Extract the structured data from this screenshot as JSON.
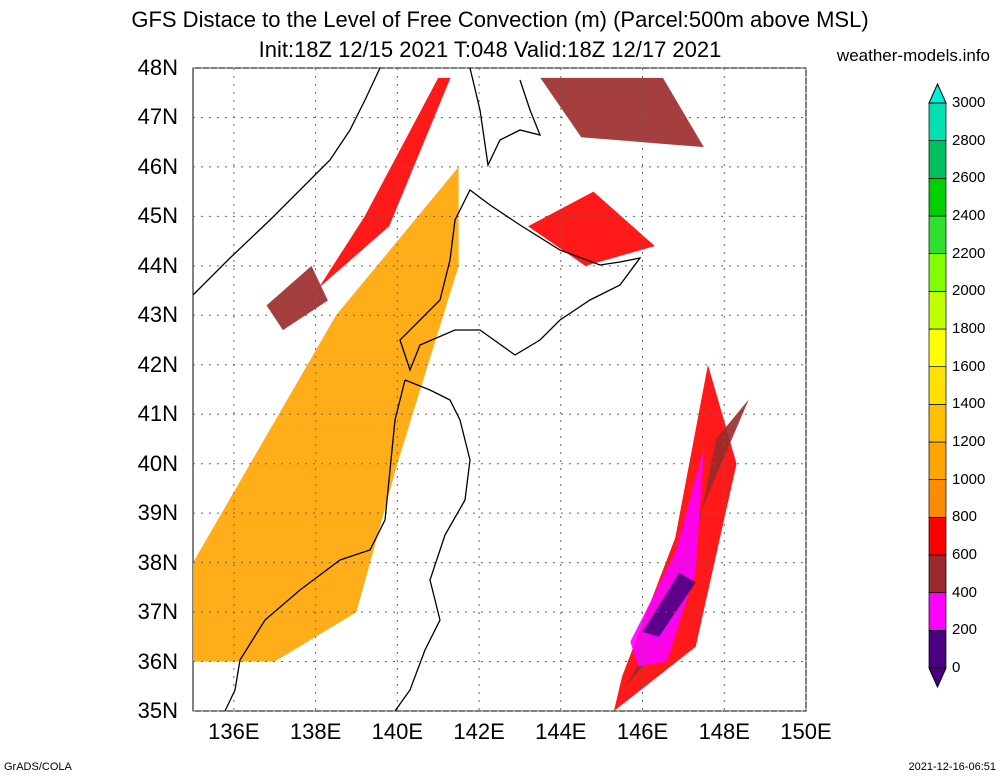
{
  "title_line1": "GFS Distace to the Level of Free Convection (m) (Parcel:500m above MSL)",
  "title_line2": "Init:18Z 12/15 2021 T:048 Valid:18Z 12/17 2021",
  "site": "weather-models.info",
  "footer_left": "GrADS/COLA",
  "footer_right": "2021-12-16-06:51",
  "map": {
    "lon_range": [
      135,
      150
    ],
    "lat_range": [
      35,
      48
    ],
    "lat_ticks": [
      "35N",
      "36N",
      "37N",
      "38N",
      "39N",
      "40N",
      "41N",
      "42N",
      "43N",
      "44N",
      "45N",
      "46N",
      "47N",
      "48N"
    ],
    "lon_ticks": [
      "136E",
      "138E",
      "140E",
      "142E",
      "144E",
      "146E",
      "148E",
      "150E"
    ],
    "lon_tick_values": [
      136,
      138,
      140,
      142,
      144,
      146,
      148,
      150
    ],
    "lat_tick_values": [
      35,
      36,
      37,
      38,
      39,
      40,
      41,
      42,
      43,
      44,
      45,
      46,
      47,
      48
    ]
  },
  "colorbar": {
    "labels": [
      "0",
      "200",
      "400",
      "600",
      "800",
      "1000",
      "1200",
      "1400",
      "1600",
      "1800",
      "2000",
      "2200",
      "2400",
      "2600",
      "2800",
      "3000"
    ],
    "colors": [
      "#4b0082",
      "#ff00ff",
      "#9b2a2a",
      "#ff0000",
      "#ff8c00",
      "#ffa500",
      "#ffc000",
      "#ffe000",
      "#ffff00",
      "#c0ff00",
      "#80ff00",
      "#30e030",
      "#00d000",
      "#00c060",
      "#00e0b0",
      "#00f0e0"
    ],
    "bottom_color": "#4b0082",
    "top_color": "#00f0e0"
  },
  "fields": [
    {
      "name": "japan-sea-orange-region",
      "color": "#ffa500",
      "lon": [
        135,
        138.5,
        141.5,
        141.5,
        140,
        139,
        137,
        135
      ],
      "lat": [
        38,
        43,
        46,
        44,
        40,
        37,
        36,
        36
      ]
    },
    {
      "name": "japan-sea-red-band",
      "color": "#ff0000",
      "lon": [
        138,
        139.8,
        141.3,
        141.0,
        139.2,
        137.8
      ],
      "lat": [
        43.5,
        44.8,
        47.8,
        47.8,
        45,
        43.2
      ]
    },
    {
      "name": "japan-sea-brown-patch",
      "color": "#9b2a2a",
      "lon": [
        136.8,
        137.9,
        138.3,
        137.2
      ],
      "lat": [
        43.2,
        44.0,
        43.3,
        42.7
      ]
    },
    {
      "name": "pacific-red-region",
      "color": "#ff0000",
      "lon": [
        145.3,
        147.3,
        148.3,
        147.6,
        146.8,
        145.5
      ],
      "lat": [
        35.0,
        36.3,
        40.0,
        42.0,
        38.5,
        35.7
      ]
    },
    {
      "name": "pacific-brown-region",
      "color": "#9b2a2a",
      "lon": [
        145.6,
        146.9,
        147.8,
        148.6,
        147.0,
        145.8
      ],
      "lat": [
        35.5,
        36.8,
        40.5,
        41.3,
        38.2,
        35.8
      ]
    },
    {
      "name": "pacific-magenta-region",
      "color": "#ff00ff",
      "lon": [
        145.7,
        146.8,
        147.5,
        147.3,
        146.6,
        145.9
      ],
      "lat": [
        36.4,
        38.2,
        40.3,
        37.8,
        36.0,
        35.9
      ]
    },
    {
      "name": "pacific-purple-core",
      "color": "#4b0082",
      "lon": [
        146.0,
        146.9,
        147.3,
        146.4
      ],
      "lat": [
        36.6,
        37.8,
        37.6,
        36.5
      ]
    },
    {
      "name": "okhotsk-brown-region",
      "color": "#9b2a2a",
      "lon": [
        143.5,
        146.5,
        147.5,
        144.5
      ],
      "lat": [
        47.8,
        47.8,
        46.4,
        46.6
      ]
    },
    {
      "name": "kuril-red-patches",
      "color": "#ff0000",
      "lon": [
        143.2,
        144.8,
        146.3,
        144.6
      ],
      "lat": [
        44.8,
        45.5,
        44.4,
        44.0
      ]
    }
  ]
}
